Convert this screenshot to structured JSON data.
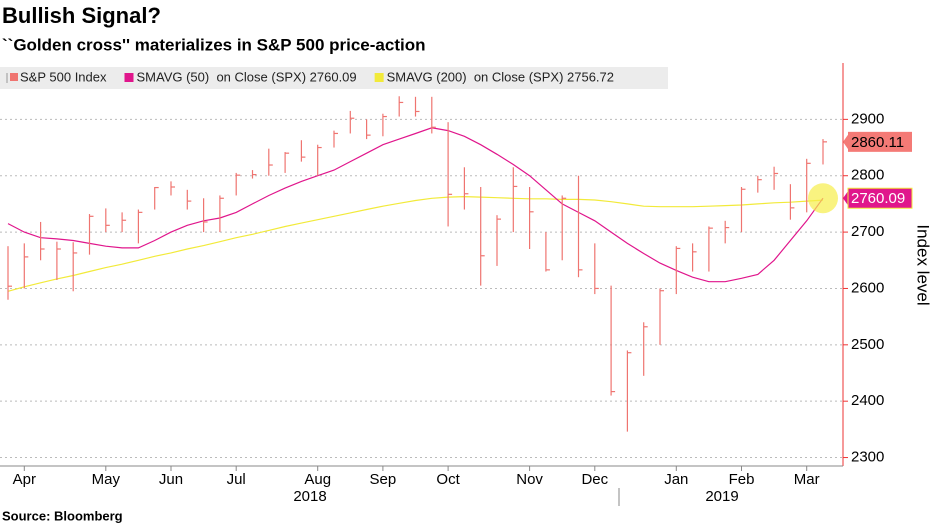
{
  "chart_data": {
    "type": "ohlc",
    "title": "Bullish Signal?",
    "subtitle": "``Golden cross'' materializes in S&P 500 price-action",
    "y_label": "Index level",
    "source": "Source: Bloomberg",
    "categories": [
      null,
      "Apr",
      null,
      null,
      null,
      null,
      "May",
      null,
      null,
      null,
      "Jun",
      null,
      null,
      null,
      "Jul",
      null,
      null,
      null,
      null,
      "Aug",
      null,
      null,
      null,
      "Sep",
      null,
      null,
      null,
      "Oct",
      null,
      null,
      null,
      null,
      "Nov",
      null,
      null,
      null,
      "Dec",
      null,
      null,
      null,
      null,
      "Jan",
      null,
      null,
      null,
      "Feb",
      null,
      null,
      null,
      "Mar",
      null
    ],
    "x_groups": [
      "2018",
      "2019"
    ],
    "ylim": [
      2285,
      3000
    ],
    "yticks": [
      2300,
      2400,
      2500,
      2600,
      2700,
      2800,
      2900
    ],
    "grid": true,
    "series": [
      {
        "name": "S&P 500 Index",
        "color": "#ef7470",
        "values": [
          2604,
          2656,
          2670,
          2670,
          2663,
          2728,
          2712,
          2721,
          2735,
          2779,
          2780,
          2755,
          2718,
          2760,
          2801,
          2802,
          2819,
          2840,
          2833,
          2850,
          2875,
          2902,
          2872,
          2905,
          2930,
          2914,
          2886,
          2767,
          2768,
          2658,
          2723,
          2781,
          2736,
          2633,
          2760,
          2633,
          2600,
          2417,
          2486,
          2532,
          2596,
          2671,
          2665,
          2707,
          2708,
          2776,
          2793,
          2804,
          2743,
          2822,
          2860.11
        ],
        "high": [
          2675,
          2680,
          2718,
          2683,
          2682,
          2732,
          2742,
          2735,
          2740,
          2780,
          2790,
          2775,
          2760,
          2765,
          2805,
          2810,
          2848,
          2842,
          2863,
          2855,
          2880,
          2915,
          2900,
          2910,
          2941,
          2940,
          2940,
          2895,
          2815,
          2780,
          2730,
          2815,
          2780,
          2700,
          2765,
          2800,
          2680,
          2605,
          2490,
          2540,
          2600,
          2675,
          2680,
          2710,
          2720,
          2780,
          2800,
          2816,
          2785,
          2830,
          2865
        ],
        "low": [
          2580,
          2600,
          2650,
          2615,
          2595,
          2660,
          2700,
          2700,
          2680,
          2740,
          2765,
          2740,
          2700,
          2700,
          2765,
          2795,
          2800,
          2805,
          2825,
          2800,
          2850,
          2875,
          2865,
          2870,
          2905,
          2905,
          2875,
          2710,
          2740,
          2605,
          2640,
          2700,
          2670,
          2630,
          2650,
          2620,
          2590,
          2410,
          2346,
          2445,
          2500,
          2590,
          2630,
          2630,
          2680,
          2700,
          2770,
          2775,
          2722,
          2735,
          2820
        ]
      },
      {
        "name": "SMAVG (50)  on Close (SPX) 2760.09",
        "color": "#e0168c",
        "values": [
          2715,
          2700,
          2690,
          2688,
          2685,
          2680,
          2675,
          2672,
          2672,
          2685,
          2700,
          2712,
          2720,
          2725,
          2735,
          2750,
          2765,
          2778,
          2790,
          2800,
          2810,
          2825,
          2840,
          2855,
          2865,
          2875,
          2885,
          2880,
          2870,
          2855,
          2838,
          2820,
          2800,
          2775,
          2750,
          2735,
          2720,
          2700,
          2680,
          2662,
          2645,
          2632,
          2620,
          2612,
          2612,
          2618,
          2625,
          2650,
          2685,
          2720,
          2760.09
        ]
      },
      {
        "name": "SMAVG (200)  on Close (SPX) 2756.72",
        "color": "#f2ea3a",
        "values": [
          2595,
          2603,
          2610,
          2617,
          2623,
          2630,
          2637,
          2643,
          2650,
          2657,
          2663,
          2670,
          2676,
          2683,
          2690,
          2696,
          2703,
          2710,
          2716,
          2722,
          2728,
          2734,
          2740,
          2746,
          2751,
          2756,
          2760,
          2762,
          2763,
          2762,
          2761,
          2760,
          2759,
          2759,
          2758,
          2758,
          2757,
          2754,
          2750,
          2746,
          2745,
          2745,
          2745,
          2746,
          2747,
          2748,
          2750,
          2752,
          2753,
          2755,
          2756.72
        ]
      }
    ]
  }
}
